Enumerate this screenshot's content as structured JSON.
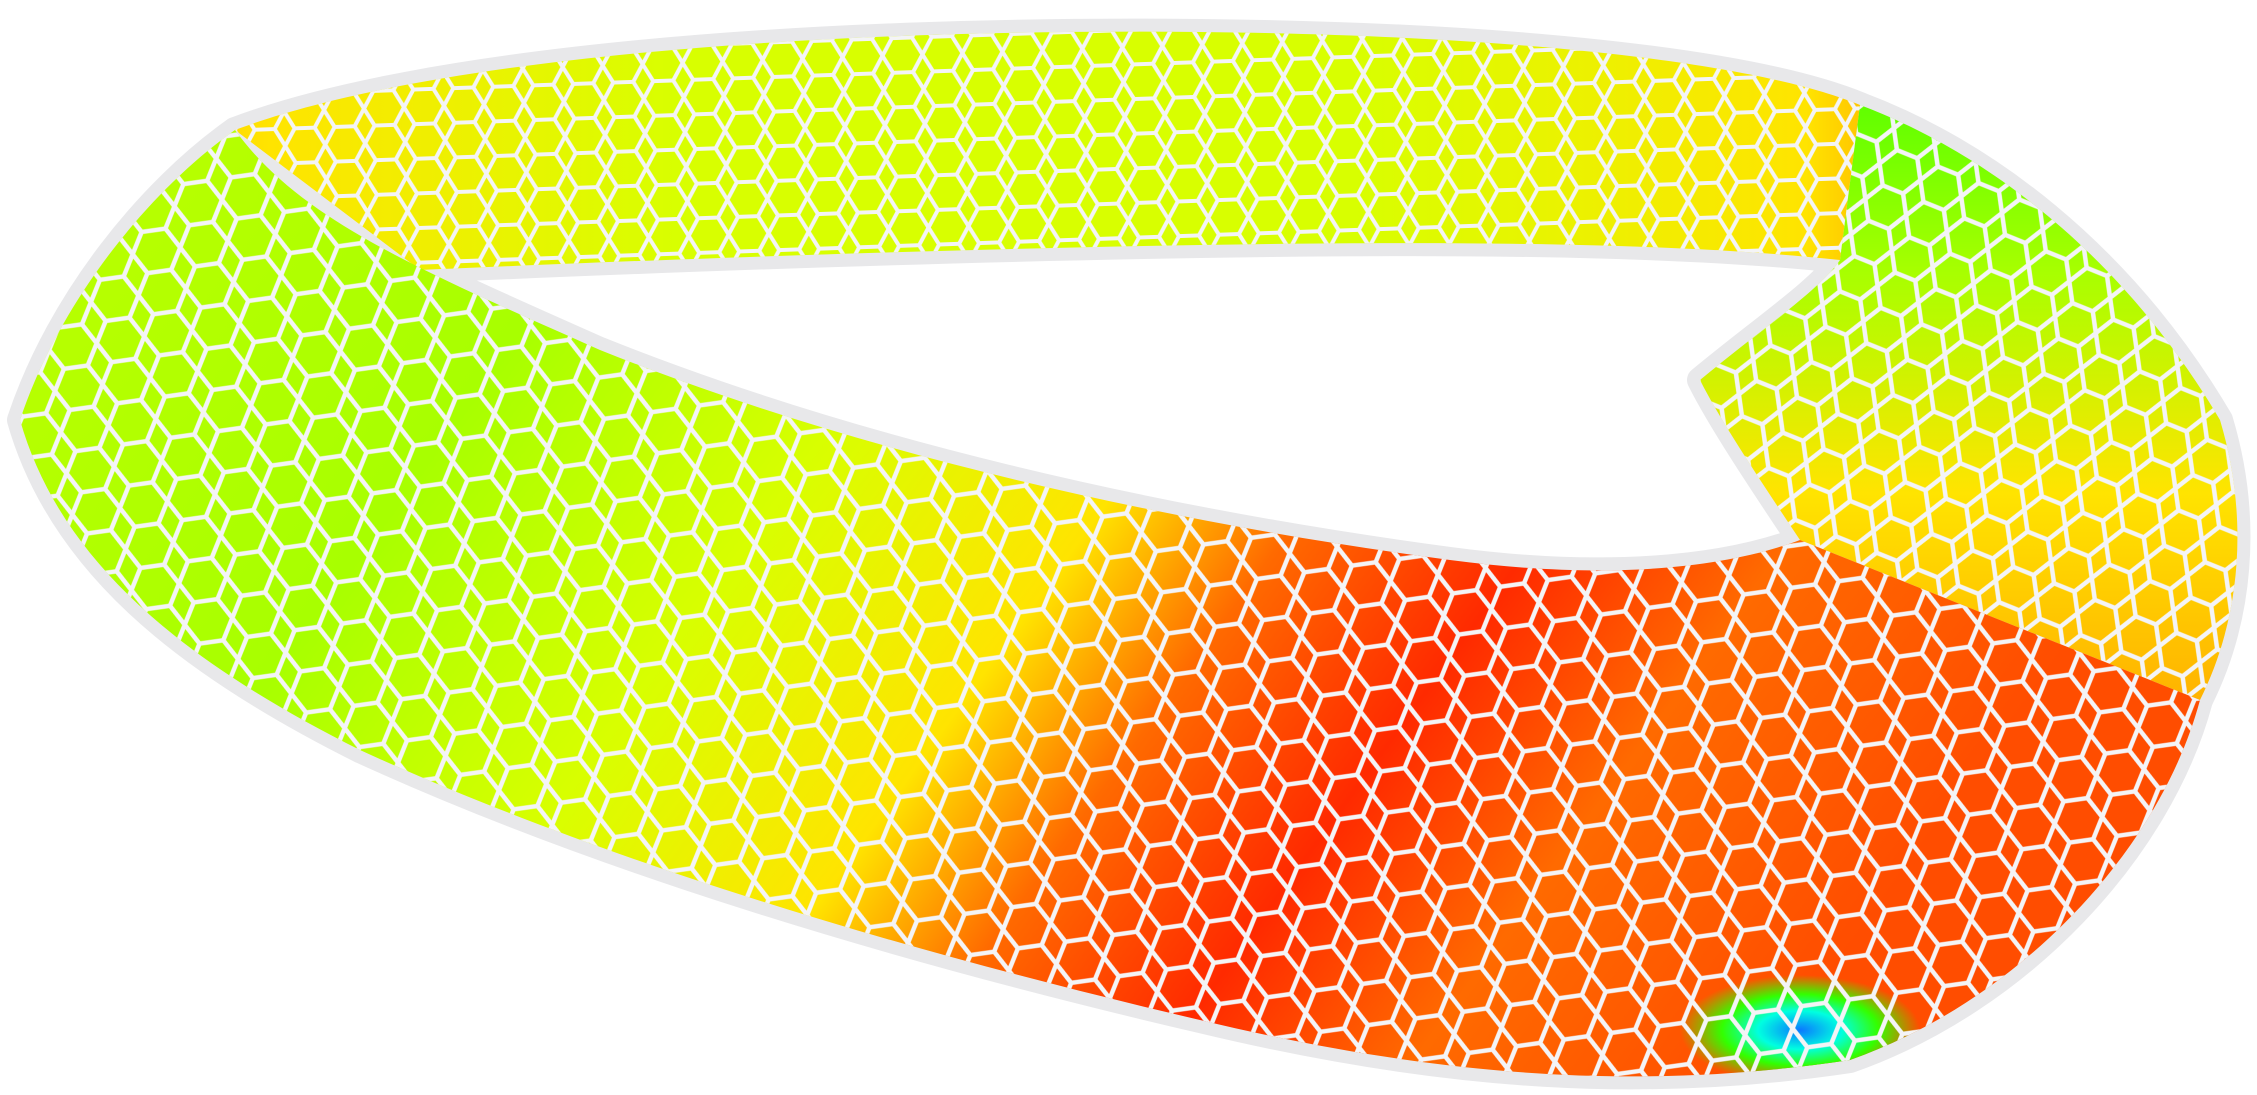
{
  "figure": {
    "subject": "hexagon-tiled-mobius-band",
    "background": "#ffffff",
    "band_base_color": "#e8e8ea",
    "cell_gap_color": "#f4f4f6",
    "palette": {
      "red": "#ff2a00",
      "red_orange": "#ff4d00",
      "orange": "#ff6a00",
      "amber": "#ffb000",
      "yellow": "#ffe400",
      "yellow_green": "#d8ff00",
      "lime": "#a8ff00",
      "green": "#33ff00",
      "spring_green": "#00ff55",
      "cyan": "#00ffe0",
      "blue": "#0a78ff"
    }
  }
}
